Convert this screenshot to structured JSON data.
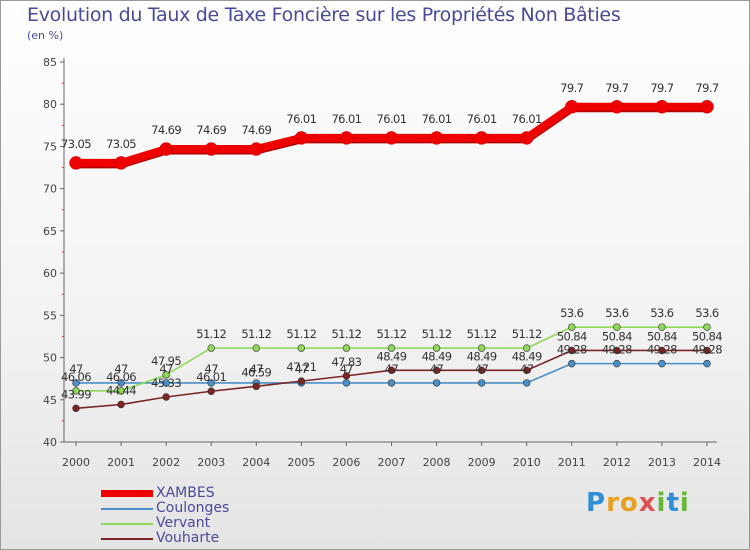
{
  "chart_data": {
    "type": "line",
    "title": "Evolution du Taux de Taxe Foncière sur les Propriétés Non Bâties",
    "subtitle": "(en %)",
    "x": [
      "2000",
      "2001",
      "2002",
      "2003",
      "2004",
      "2005",
      "2006",
      "2007",
      "2008",
      "2009",
      "2010",
      "2011",
      "2012",
      "2013",
      "2014"
    ],
    "ylim": [
      40,
      85
    ],
    "yticks": [
      40,
      45,
      50,
      55,
      60,
      65,
      70,
      75,
      80,
      85
    ],
    "grid": false,
    "series": [
      {
        "name": "XAMBES",
        "color": "#ee0000",
        "values": [
          73.05,
          73.05,
          74.69,
          74.69,
          74.69,
          76.01,
          76.01,
          76.01,
          76.01,
          76.01,
          76.01,
          79.7,
          79.7,
          79.7,
          79.7
        ],
        "labels": [
          "73.05",
          "73.05",
          "74.69",
          "74.69",
          "74.69",
          "76.01",
          "76.01",
          "76.01",
          "76.01",
          "76.01",
          "76.01",
          "79.7",
          "79.7",
          "79.7",
          "79.7"
        ]
      },
      {
        "name": "Coulonges",
        "color": "#4a8fc8",
        "values": [
          47,
          47,
          47,
          47,
          47,
          47,
          47,
          47,
          47,
          47,
          47,
          49.28,
          49.28,
          49.28,
          49.28
        ],
        "labels": [
          "47",
          "47",
          "47",
          "47",
          "47",
          "47",
          "47",
          "47",
          "47",
          "47",
          "47",
          "49.28",
          "49.28",
          "49.28",
          "49.28"
        ]
      },
      {
        "name": "Vervant",
        "color": "#8fd85a",
        "values": [
          46.06,
          46.06,
          47.95,
          51.12,
          51.12,
          51.12,
          51.12,
          51.12,
          51.12,
          51.12,
          51.12,
          53.6,
          53.6,
          53.6,
          53.6
        ],
        "labels": [
          "46.06",
          "46.06",
          "47.95",
          "51.12",
          "51.12",
          "51.12",
          "51.12",
          "51.12",
          "51.12",
          "51.12",
          "51.12",
          "53.6",
          "53.6",
          "53.6",
          "53.6"
        ]
      },
      {
        "name": "Vouharte",
        "color": "#7a2424",
        "values": [
          43.99,
          44.44,
          45.33,
          46.01,
          46.59,
          47.21,
          47.83,
          48.49,
          48.49,
          48.49,
          48.49,
          50.84,
          50.84,
          50.84,
          50.84
        ],
        "labels": [
          "43.99",
          "44.44",
          "45.33",
          "46.01",
          "46.59",
          "47.21",
          "47.83",
          "48.49",
          "48.49",
          "48.49",
          "48.49",
          "50.84",
          "50.84",
          "50.84",
          "50.84"
        ]
      }
    ],
    "legend": "bottom-left"
  },
  "logo_text": "Proxiti",
  "colors": {
    "title": "#4a4a9c",
    "axis": "#555555",
    "label": "#333333"
  }
}
